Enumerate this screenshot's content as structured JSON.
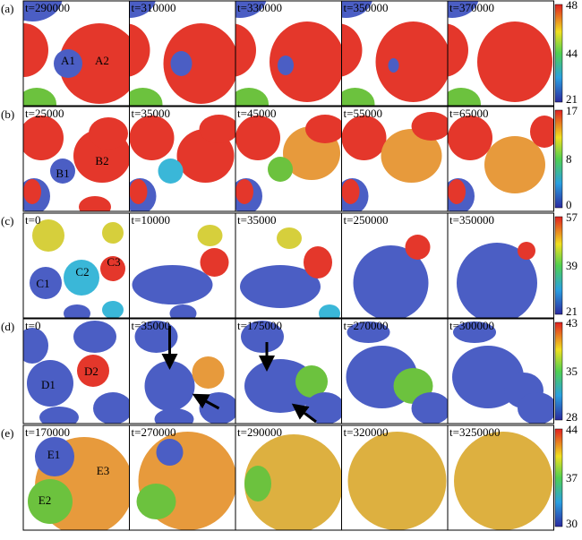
{
  "rows": [
    {
      "label": "(a)",
      "panels": [
        "t=290000",
        "t=310000",
        "t=330000",
        "t=350000",
        "t=370000"
      ],
      "particles": [
        "A1",
        "A2"
      ],
      "colorbar_ticks": [
        48,
        44,
        21
      ]
    },
    {
      "label": "(b)",
      "panels": [
        "t=25000",
        "t=35000",
        "t=45000",
        "t=55000",
        "t=65000"
      ],
      "particles": [
        "B1",
        "B2"
      ],
      "colorbar_ticks": [
        17,
        8,
        0
      ]
    },
    {
      "label": "(c)",
      "panels": [
        "t=0",
        "t=10000",
        "t=35000",
        "t=250000",
        "t=350000"
      ],
      "particles": [
        "C1",
        "C2",
        "C3"
      ],
      "colorbar_ticks": [
        57,
        39,
        21
      ]
    },
    {
      "label": "(d)",
      "panels": [
        "t=0",
        "t=35000",
        "t=175000",
        "t=270000",
        "t=300000"
      ],
      "particles": [
        "D1",
        "D2"
      ],
      "colorbar_ticks": [
        43,
        35,
        28
      ]
    },
    {
      "label": "(e)",
      "panels": [
        "t=170000",
        "t=270000",
        "t=290000",
        "t=320000",
        "t=3250000"
      ],
      "particles": [
        "E1",
        "E2",
        "E3"
      ],
      "colorbar_ticks": [
        44,
        37,
        30
      ]
    }
  ]
}
